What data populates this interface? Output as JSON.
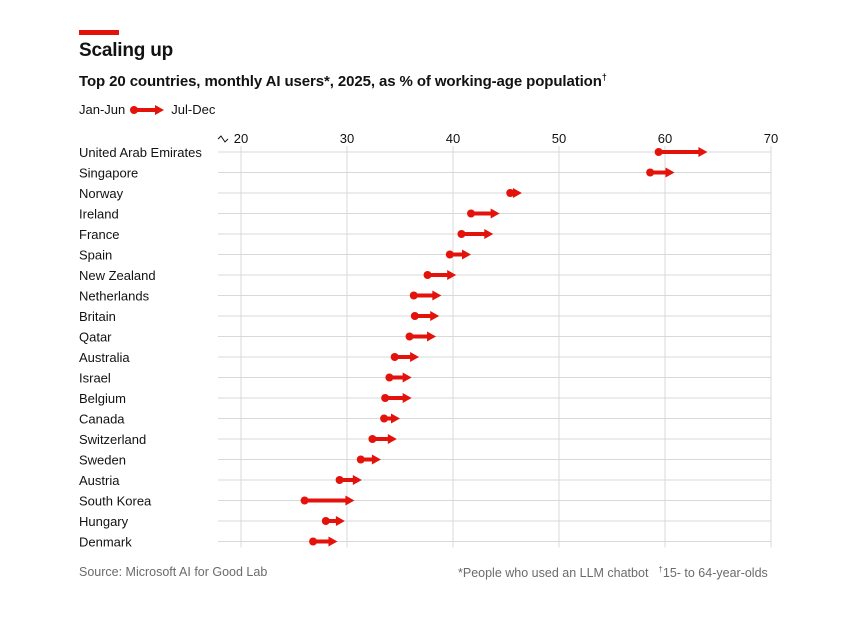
{
  "header": {
    "title": "Scaling up",
    "subtitle": "Top 20 countries, monthly AI users*, 2025, as % of working-age population",
    "subtitle_mark": "†"
  },
  "legend": {
    "start_label": "Jan-Jun",
    "end_label": "Jul-Dec"
  },
  "footer": {
    "source": "Source: Microsoft AI for Good Lab",
    "note1": "*People who used an LLM chatbot",
    "note2_mark": "†",
    "note2": "15- to 64-year-olds"
  },
  "colors": {
    "accent": "#e3120b",
    "grid": "#d9d9d9",
    "text": "#121212",
    "muted": "#6b6b6b"
  },
  "chart_data": {
    "type": "arrow-dot",
    "title": "Scaling up",
    "subtitle": "Top 20 countries, monthly AI users*, 2025, as % of working-age population",
    "axis_break": true,
    "xlim": [
      20,
      70
    ],
    "xticks": [
      20,
      30,
      40,
      50,
      60,
      70
    ],
    "tick_labels": [
      "20",
      "30",
      "40",
      "50",
      "60",
      "70"
    ],
    "categories": [
      "United Arab Emirates",
      "Singapore",
      "Norway",
      "Ireland",
      "France",
      "Spain",
      "New Zealand",
      "Netherlands",
      "Britain",
      "Qatar",
      "Australia",
      "Israel",
      "Belgium",
      "Canada",
      "Switzerland",
      "Sweden",
      "Austria",
      "South Korea",
      "Hungary",
      "Denmark"
    ],
    "series": [
      {
        "name": "Jan-Jun",
        "values": [
          59.4,
          58.6,
          45.4,
          41.7,
          40.8,
          39.7,
          37.6,
          36.3,
          36.4,
          35.9,
          34.5,
          34.0,
          33.6,
          33.5,
          32.4,
          31.3,
          29.3,
          26.0,
          28.0,
          26.8
        ]
      },
      {
        "name": "Jul-Dec",
        "values": [
          64.0,
          60.9,
          46.5,
          44.4,
          43.8,
          41.7,
          40.3,
          38.9,
          38.7,
          38.4,
          36.8,
          36.1,
          36.1,
          35.0,
          34.7,
          33.2,
          31.4,
          30.7,
          29.8,
          29.1
        ]
      }
    ],
    "grid": true
  }
}
